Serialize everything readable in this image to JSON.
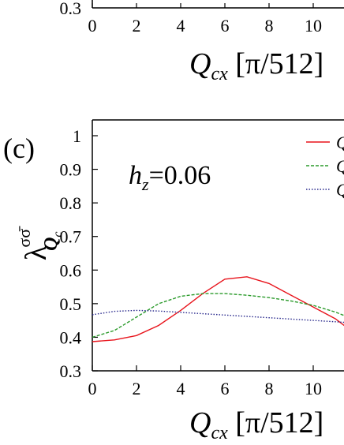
{
  "chart_data": [
    {
      "type": "line",
      "panel": "",
      "partial": true,
      "xlabel_main": "Q",
      "xlabel_sub": "cx",
      "xlabel_unit": " [π/512]",
      "xticks": [
        "0",
        "2",
        "4",
        "6",
        "8",
        "10"
      ],
      "yticks": [
        "0.3"
      ],
      "xlim": [
        0,
        11.5
      ],
      "ylim": [
        0.3,
        1.0
      ]
    },
    {
      "type": "line",
      "panel": "(c)",
      "annotation_main": "h",
      "annotation_sub": "z",
      "annotation_value": "=0.06",
      "ylabel_main": "λ",
      "ylabel_sup": "σσ̄",
      "ylabel_sub": "Q",
      "ylabel_subsub": "c",
      "xlabel_main": "Q",
      "xlabel_sub": "cx",
      "xlabel_unit": " [π/512]",
      "xticks": [
        "0",
        "2",
        "4",
        "6",
        "8",
        "10"
      ],
      "yticks": [
        "0.3",
        "0.4",
        "0.5",
        "0.6",
        "0.7",
        "0.8",
        "0.9",
        "1"
      ],
      "xlim": [
        0,
        11.5
      ],
      "ylim": [
        0.3,
        1.03
      ],
      "legend_position": "top-right",
      "legend_labels": [
        "Q",
        "Q",
        "Q"
      ],
      "x": [
        0,
        1,
        2,
        3,
        4,
        5,
        6,
        7,
        8,
        9,
        10,
        11,
        11.5
      ],
      "series": [
        {
          "color": "#e8141c",
          "dash": "solid",
          "values": [
            0.387,
            0.392,
            0.405,
            0.435,
            0.48,
            0.53,
            0.573,
            0.58,
            0.56,
            0.525,
            0.49,
            0.455,
            0.43
          ]
        },
        {
          "color": "#2a9a2a",
          "dash": "dashed",
          "values": [
            0.4,
            0.42,
            0.46,
            0.5,
            0.522,
            0.53,
            0.53,
            0.525,
            0.518,
            0.508,
            0.495,
            0.475,
            0.462
          ]
        },
        {
          "color": "#28288c",
          "dash": "dotted",
          "values": [
            0.467,
            0.477,
            0.48,
            0.478,
            0.474,
            0.47,
            0.466,
            0.462,
            0.458,
            0.454,
            0.45,
            0.446,
            0.444
          ]
        }
      ]
    }
  ]
}
